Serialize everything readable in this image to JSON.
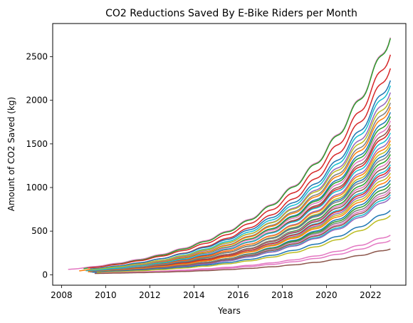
{
  "chart_data": {
    "type": "line",
    "title": "CO2 Reductions Saved By E-Bike Riders per Month",
    "xlabel": "Years",
    "ylabel": "Amount of CO2 Saved (kg)",
    "xlim": [
      2007.6,
      2023.6
    ],
    "ylim": [
      -120,
      2880
    ],
    "xticks": [
      2008,
      2010,
      2012,
      2014,
      2016,
      2018,
      2020,
      2022
    ],
    "yticks": [
      0,
      500,
      1000,
      1500,
      2000,
      2500
    ],
    "grid": false,
    "legend": "none",
    "x_end": 2022.9,
    "colors": [
      "#1f77b4",
      "#ff7f0e",
      "#2ca02c",
      "#d62728",
      "#9467bd",
      "#8c564b",
      "#e377c2",
      "#7f7f7f",
      "#bcbd22",
      "#17becf"
    ],
    "series": [
      {
        "start": 2008.3,
        "start_value": 60,
        "end_value": 2760,
        "color": "#e377c2"
      },
      {
        "start": 2009.0,
        "start_value": 70,
        "end_value": 2750,
        "color": "#2ca02c"
      },
      {
        "start": 2009.2,
        "start_value": 75,
        "end_value": 2560,
        "color": "#d62728"
      },
      {
        "start": 2009.4,
        "start_value": 60,
        "end_value": 2400,
        "color": "#d62728"
      },
      {
        "start": 2009.3,
        "start_value": 65,
        "end_value": 2260,
        "color": "#1f77b4"
      },
      {
        "start": 2009.5,
        "start_value": 55,
        "end_value": 2200,
        "color": "#17becf"
      },
      {
        "start": 2009.6,
        "start_value": 50,
        "end_value": 2120,
        "color": "#9467bd"
      },
      {
        "start": 2009.2,
        "start_value": 55,
        "end_value": 2060,
        "color": "#bcbd22"
      },
      {
        "start": 2009.7,
        "start_value": 50,
        "end_value": 2000,
        "color": "#7f7f7f"
      },
      {
        "start": 2009.4,
        "start_value": 45,
        "end_value": 1950,
        "color": "#ff7f0e"
      },
      {
        "start": 2009.8,
        "start_value": 40,
        "end_value": 1890,
        "color": "#1f77b4"
      },
      {
        "start": 2009.5,
        "start_value": 45,
        "end_value": 1840,
        "color": "#2ca02c"
      },
      {
        "start": 2009.3,
        "start_value": 40,
        "end_value": 1790,
        "color": "#e377c2"
      },
      {
        "start": 2009.9,
        "start_value": 40,
        "end_value": 1740,
        "color": "#8c564b"
      },
      {
        "start": 2009.6,
        "start_value": 38,
        "end_value": 1700,
        "color": "#d62728"
      },
      {
        "start": 2009.1,
        "start_value": 45,
        "end_value": 1650,
        "color": "#17becf"
      },
      {
        "start": 2009.7,
        "start_value": 35,
        "end_value": 1600,
        "color": "#9467bd"
      },
      {
        "start": 2009.4,
        "start_value": 38,
        "end_value": 1560,
        "color": "#ff7f0e"
      },
      {
        "start": 2009.8,
        "start_value": 32,
        "end_value": 1520,
        "color": "#bcbd22"
      },
      {
        "start": 2009.5,
        "start_value": 35,
        "end_value": 1480,
        "color": "#1f77b4"
      },
      {
        "start": 2009.2,
        "start_value": 38,
        "end_value": 1440,
        "color": "#7f7f7f"
      },
      {
        "start": 2009.9,
        "start_value": 30,
        "end_value": 1400,
        "color": "#2ca02c"
      },
      {
        "start": 2009.6,
        "start_value": 32,
        "end_value": 1360,
        "color": "#e377c2"
      },
      {
        "start": 2009.3,
        "start_value": 34,
        "end_value": 1320,
        "color": "#8c564b"
      },
      {
        "start": 2009.7,
        "start_value": 30,
        "end_value": 1280,
        "color": "#17becf"
      },
      {
        "start": 2009.4,
        "start_value": 32,
        "end_value": 1250,
        "color": "#d62728"
      },
      {
        "start": 2009.8,
        "start_value": 28,
        "end_value": 1220,
        "color": "#9467bd"
      },
      {
        "start": 2009.5,
        "start_value": 30,
        "end_value": 1180,
        "color": "#bcbd22"
      },
      {
        "start": 2009.2,
        "start_value": 32,
        "end_value": 1140,
        "color": "#ff7f0e"
      },
      {
        "start": 2009.9,
        "start_value": 26,
        "end_value": 1100,
        "color": "#1f77b4"
      },
      {
        "start": 2009.6,
        "start_value": 28,
        "end_value": 1060,
        "color": "#2ca02c"
      },
      {
        "start": 2009.3,
        "start_value": 30,
        "end_value": 1020,
        "color": "#7f7f7f"
      },
      {
        "start": 2009.7,
        "start_value": 26,
        "end_value": 990,
        "color": "#e377c2"
      },
      {
        "start": 2009.4,
        "start_value": 28,
        "end_value": 960,
        "color": "#8c564b"
      },
      {
        "start": 2009.8,
        "start_value": 24,
        "end_value": 930,
        "color": "#17becf"
      },
      {
        "start": 2009.5,
        "start_value": 26,
        "end_value": 900,
        "color": "#9467bd"
      },
      {
        "start": 2009.4,
        "start_value": 30,
        "end_value": 750,
        "color": "#1f77b4"
      },
      {
        "start": 2009.6,
        "start_value": 25,
        "end_value": 690,
        "color": "#bcbd22"
      },
      {
        "start": 2009.8,
        "start_value": 20,
        "end_value": 460,
        "color": "#e377c2"
      },
      {
        "start": 2009.9,
        "start_value": 18,
        "end_value": 400,
        "color": "#e377c2"
      },
      {
        "start": 2009.5,
        "start_value": 15,
        "end_value": 300,
        "color": "#8c564b"
      },
      {
        "start": 2008.8,
        "start_value": 45,
        "end_value": 60,
        "color": "#ff7f0e",
        "end": 2009.3
      }
    ]
  }
}
